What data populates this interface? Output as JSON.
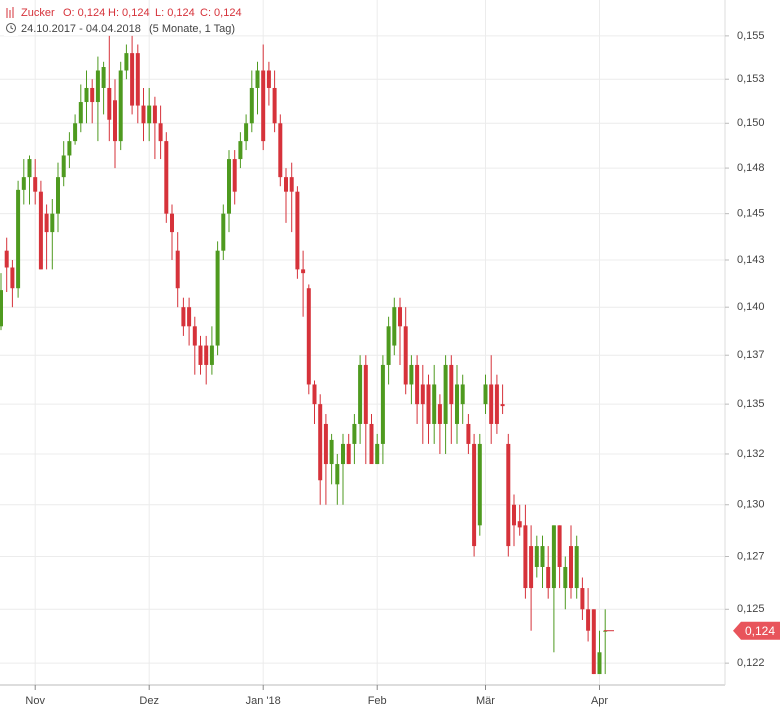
{
  "chart_data": {
    "type": "candlestick",
    "title": "Zucker",
    "quote": [
      "O: 0,124",
      "H: 0,124",
      "L: 0,124",
      "C: 0,124"
    ],
    "date_range": "24.10.2017 - 04.04.2018",
    "period": "(5 Monate, 1 Tag)",
    "log_scale": true,
    "grid": true,
    "up_color": "#4e9a1f",
    "down_color": "#d6323a",
    "ylim": [
      0.1215,
      0.1571
    ],
    "yticks": [
      {
        "value": 0.155,
        "label": "0,155"
      },
      {
        "value": 0.1525,
        "label": "0,153"
      },
      {
        "value": 0.15,
        "label": "0,150"
      },
      {
        "value": 0.1475,
        "label": "0,148"
      },
      {
        "value": 0.145,
        "label": "0,145"
      },
      {
        "value": 0.1425,
        "label": "0,143"
      },
      {
        "value": 0.14,
        "label": "0,140"
      },
      {
        "value": 0.1375,
        "label": "0,137"
      },
      {
        "value": 0.135,
        "label": "0,135"
      },
      {
        "value": 0.1325,
        "label": "0,132"
      },
      {
        "value": 0.13,
        "label": "0,130"
      },
      {
        "value": 0.1275,
        "label": "0,127"
      },
      {
        "value": 0.125,
        "label": "0,125"
      },
      {
        "value": 0.1225,
        "label": "0,122"
      }
    ],
    "xticks": [
      {
        "value": 6,
        "label": "Nov"
      },
      {
        "value": 26,
        "label": "Dez"
      },
      {
        "value": 46,
        "label": "Jan '18"
      },
      {
        "value": 66,
        "label": "Feb"
      },
      {
        "value": 85,
        "label": "Mär"
      },
      {
        "value": 105,
        "label": "Apr"
      }
    ],
    "last_price": {
      "value": 0.124,
      "label": "0,124"
    },
    "open": [
      0.139,
      0.143,
      0.1421,
      0.141,
      0.1463,
      0.147,
      0.147,
      0.1462,
      0.145,
      0.144,
      0.145,
      0.147,
      0.1482,
      0.149,
      0.15,
      0.1512,
      0.152,
      0.1512,
      0.152,
      0.152,
      0.1513,
      0.149,
      0.153,
      0.154,
      0.154,
      0.151,
      0.15,
      0.151,
      0.15,
      0.149,
      0.145,
      0.143,
      0.14,
      0.14,
      0.139,
      0.138,
      0.138,
      0.137,
      0.138,
      0.143,
      0.145,
      0.148,
      0.148,
      0.149,
      0.15,
      0.152,
      0.153,
      0.153,
      0.152,
      0.15,
      0.147,
      0.147,
      0.1462,
      0.142,
      0.141,
      0.136,
      0.135,
      0.134,
      0.132,
      0.131,
      0.132,
      0.133,
      0.133,
      0.134,
      0.137,
      0.134,
      0.132,
      0.133,
      0.137,
      0.138,
      0.14,
      0.139,
      0.136,
      0.137,
      0.136,
      0.136,
      0.134,
      0.135,
      0.134,
      0.137,
      0.134,
      0.135,
      0.134,
      0.133,
      0.129,
      0.135,
      0.136,
      0.136,
      0.135,
      0.133,
      0.13,
      0.1292,
      0.129,
      0.128,
      0.127,
      0.127,
      0.127,
      0.126,
      0.129,
      0.126,
      0.128,
      0.126,
      0.126,
      0.125,
      0.125,
      0.122,
      0.124
    ],
    "high": [
      0.1418,
      0.1437,
      0.1425,
      0.1468,
      0.148,
      0.1482,
      0.148,
      0.1468,
      0.1455,
      0.1458,
      0.1478,
      0.149,
      0.1495,
      0.1505,
      0.1522,
      0.153,
      0.1525,
      0.1538,
      0.1535,
      0.155,
      0.1525,
      0.1535,
      0.1545,
      0.155,
      0.1545,
      0.152,
      0.152,
      0.1515,
      0.151,
      0.1495,
      0.1455,
      0.144,
      0.1405,
      0.1405,
      0.1395,
      0.1385,
      0.1385,
      0.139,
      0.1435,
      0.1455,
      0.1485,
      0.1485,
      0.1495,
      0.1505,
      0.153,
      0.1535,
      0.1545,
      0.1535,
      0.153,
      0.1505,
      0.1475,
      0.1478,
      0.1465,
      0.143,
      0.1412,
      0.1362,
      0.1355,
      0.1345,
      0.1335,
      0.1325,
      0.1335,
      0.1335,
      0.1345,
      0.1375,
      0.1375,
      0.1345,
      0.1335,
      0.1375,
      0.1395,
      0.1405,
      0.1405,
      0.14,
      0.1375,
      0.1375,
      0.137,
      0.1365,
      0.137,
      0.1355,
      0.1375,
      0.1375,
      0.137,
      0.1365,
      0.1345,
      0.1335,
      0.1335,
      0.1365,
      0.1375,
      0.1365,
      0.136,
      0.1335,
      0.1305,
      0.13,
      0.13,
      0.129,
      0.1285,
      0.1285,
      0.128,
      0.129,
      0.129,
      0.1275,
      0.129,
      0.1285,
      0.1265,
      0.126,
      0.125,
      0.124,
      0.125
    ],
    "low": [
      0.1388,
      0.1408,
      0.14,
      0.1405,
      0.1455,
      0.1455,
      0.1455,
      0.142,
      0.142,
      0.142,
      0.144,
      0.1465,
      0.1475,
      0.1488,
      0.1495,
      0.15,
      0.15,
      0.149,
      0.1505,
      0.149,
      0.1475,
      0.1485,
      0.1525,
      0.1505,
      0.15,
      0.149,
      0.149,
      0.148,
      0.148,
      0.1445,
      0.1425,
      0.14,
      0.1385,
      0.138,
      0.1365,
      0.1365,
      0.136,
      0.1365,
      0.1375,
      0.1425,
      0.144,
      0.1455,
      0.1475,
      0.1485,
      0.1495,
      0.1505,
      0.1485,
      0.151,
      0.1495,
      0.1465,
      0.1445,
      0.144,
      0.1415,
      0.1395,
      0.1355,
      0.134,
      0.13,
      0.13,
      0.131,
      0.13,
      0.13,
      0.132,
      0.132,
      0.133,
      0.132,
      0.132,
      0.132,
      0.132,
      0.136,
      0.1375,
      0.137,
      0.1355,
      0.135,
      0.134,
      0.133,
      0.133,
      0.133,
      0.1325,
      0.1325,
      0.133,
      0.133,
      0.134,
      0.1325,
      0.1275,
      0.1285,
      0.1345,
      0.133,
      0.1335,
      0.1345,
      0.1275,
      0.128,
      0.1285,
      0.1255,
      0.124,
      0.1265,
      0.126,
      0.1255,
      0.123,
      0.126,
      0.125,
      0.1255,
      0.1255,
      0.1245,
      0.1235,
      0.122,
      0.122,
      0.122
    ],
    "close": [
      0.1409,
      0.1421,
      0.141,
      0.1463,
      0.147,
      0.148,
      0.1462,
      0.142,
      0.144,
      0.145,
      0.147,
      0.1482,
      0.149,
      0.15,
      0.1512,
      0.152,
      0.1512,
      0.153,
      0.1532,
      0.1502,
      0.149,
      0.153,
      0.154,
      0.151,
      0.151,
      0.15,
      0.151,
      0.15,
      0.149,
      0.145,
      0.144,
      0.141,
      0.139,
      0.139,
      0.138,
      0.137,
      0.137,
      0.138,
      0.143,
      0.145,
      0.148,
      0.1462,
      0.149,
      0.15,
      0.152,
      0.153,
      0.149,
      0.152,
      0.15,
      0.147,
      0.1462,
      0.1462,
      0.142,
      0.1418,
      0.136,
      0.135,
      0.1312,
      0.132,
      0.1332,
      0.132,
      0.133,
      0.132,
      0.134,
      0.137,
      0.134,
      0.132,
      0.133,
      0.137,
      0.139,
      0.14,
      0.139,
      0.136,
      0.137,
      0.135,
      0.135,
      0.134,
      0.136,
      0.134,
      0.137,
      0.135,
      0.136,
      0.136,
      0.133,
      0.128,
      0.133,
      0.136,
      0.134,
      0.134,
      0.1349,
      0.128,
      0.129,
      0.1289,
      0.126,
      0.126,
      0.128,
      0.128,
      0.126,
      0.129,
      0.127,
      0.127,
      0.126,
      0.128,
      0.125,
      0.124,
      0.122,
      0.123,
      0.124
    ]
  }
}
